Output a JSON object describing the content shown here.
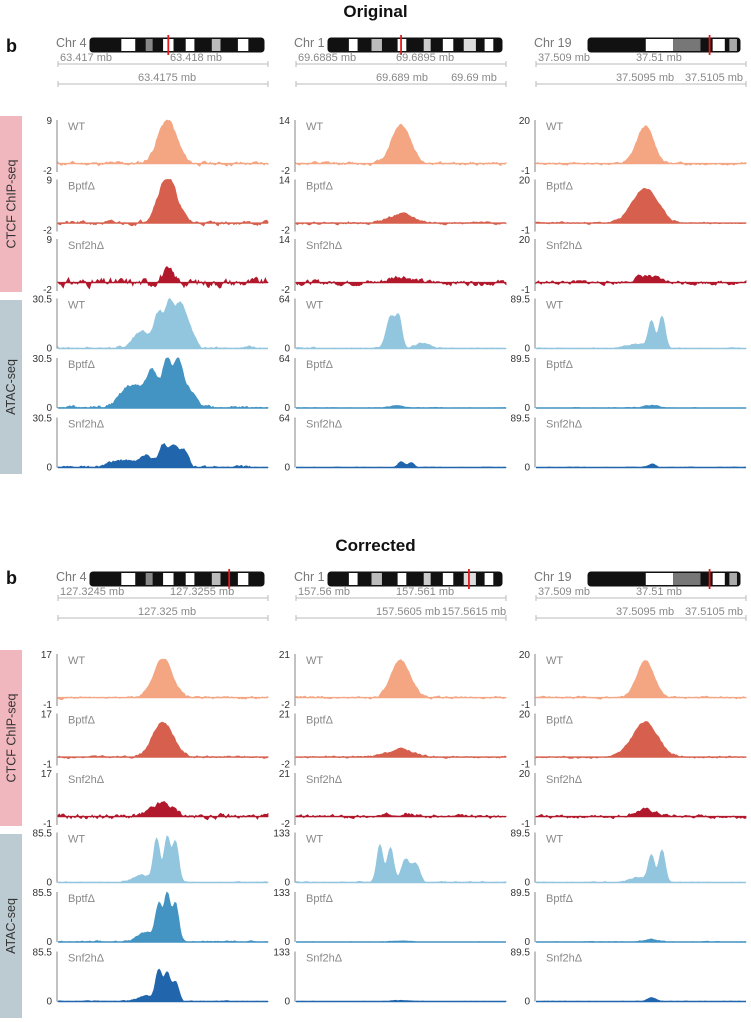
{
  "sections": [
    {
      "title": "Original",
      "panel_letter": "b",
      "side_labels": [
        "CTCF ChIP-seq",
        "ATAC-seq"
      ],
      "columns": [
        {
          "chromosome": "Chr 4",
          "coord_top": [
            "63.417 mb",
            "63.418 mb"
          ],
          "coord_bottom": "63.4175 mb",
          "ymax": {
            "chip": "9",
            "atac": "30.5"
          },
          "ymin": {
            "chip": "-2",
            "atac": "0"
          }
        },
        {
          "chromosome": "Chr 1",
          "coord_top": [
            "69.6885 mb",
            "69.6895 mb"
          ],
          "coord_bottom": "69.689 mb",
          "coord_bottom_right": "69.69 mb",
          "ymax": {
            "chip": "14",
            "atac": "64"
          },
          "ymin": {
            "chip": "-2",
            "atac": "0"
          }
        },
        {
          "chromosome": "Chr 19",
          "coord_top": [
            "37.509 mb",
            "37.51 mb"
          ],
          "coord_bottom": "37.5095 mb",
          "coord_bottom_right": "37.5105 mb",
          "ymax": {
            "chip": "20",
            "atac": "89.5"
          },
          "ymin": {
            "chip": "-1",
            "atac": "0"
          }
        }
      ]
    },
    {
      "title": "Corrected",
      "panel_letter": "b",
      "side_labels": [
        "CTCF ChIP-seq",
        "ATAC-seq"
      ],
      "columns": [
        {
          "chromosome": "Chr 4",
          "coord_top": [
            "127.3245 mb",
            "127.3255 mb"
          ],
          "coord_bottom": "127.325 mb",
          "ymax": {
            "chip": "17",
            "atac": "85.5"
          },
          "ymin": {
            "chip": "-1",
            "atac": "0"
          }
        },
        {
          "chromosome": "Chr 1",
          "coord_top": [
            "157.56 mb",
            "157.561 mb"
          ],
          "coord_bottom": "157.5605 mb",
          "coord_bottom_right": "157.5615 mb",
          "ymax": {
            "chip": "21",
            "atac": "133"
          },
          "ymin": {
            "chip": "-2",
            "atac": "0"
          }
        },
        {
          "chromosome": "Chr 19",
          "coord_top": [
            "37.509 mb",
            "37.51 mb"
          ],
          "coord_bottom": "37.5095 mb",
          "coord_bottom_right": "37.5105 mb",
          "ymax": {
            "chip": "20",
            "atac": "89.5"
          },
          "ymin": {
            "chip": "-1",
            "atac": "0"
          }
        }
      ]
    }
  ],
  "chart_data": {
    "type": "area",
    "track_labels": [
      "WT",
      "BptfΔ",
      "Snf2hΔ",
      "WT",
      "BptfΔ",
      "Snf2hΔ"
    ],
    "assays": [
      "CTCF ChIP-seq",
      "CTCF ChIP-seq",
      "CTCF ChIP-seq",
      "ATAC-seq",
      "ATAC-seq",
      "ATAC-seq"
    ],
    "series_colors": [
      "#f4a582",
      "#d6604d",
      "#b2182b",
      "#92c5de",
      "#4393c3",
      "#2166ac"
    ],
    "x": [
      0,
      0.1,
      0.2,
      0.3,
      0.4,
      0.5,
      0.6,
      0.7,
      0.8,
      0.9,
      1.0
    ],
    "panels": [
      {
        "section": "Original",
        "tracks": [
          [
            {
              "ymax": 9,
              "ymin": -2,
              "peaks": [
                [
                  0.52,
                  0.045,
                  1.0
                ]
              ],
              "noise": 0.1,
              "seed": 11
            },
            {
              "ymax": 14,
              "ymin": -2,
              "peaks": [
                [
                  0.5,
                  0.045,
                  0.9
                ]
              ],
              "noise": 0.08,
              "seed": 12
            },
            {
              "ymax": 20,
              "ymin": -1,
              "peaks": [
                [
                  0.52,
                  0.04,
                  0.85
                ]
              ],
              "noise": 0.06,
              "seed": 13
            }
          ],
          [
            {
              "ymax": 9,
              "ymin": -2,
              "peaks": [
                [
                  0.52,
                  0.045,
                  1.05
                ]
              ],
              "noise": 0.1,
              "seed": 21
            },
            {
              "ymax": 14,
              "ymin": -2,
              "peaks": [
                [
                  0.5,
                  0.06,
                  0.2
                ]
              ],
              "noise": 0.06,
              "seed": 22
            },
            {
              "ymax": 20,
              "ymin": -1,
              "peaks": [
                [
                  0.52,
                  0.06,
                  0.8
                ]
              ],
              "noise": 0.05,
              "seed": 23
            }
          ],
          [
            {
              "ymax": 9,
              "ymin": -2,
              "peaks": [
                [
                  0.52,
                  0.03,
                  0.25
                ]
              ],
              "noise": 0.2,
              "seed": 31
            },
            {
              "ymax": 14,
              "ymin": -2,
              "peaks": [
                [
                  0.5,
                  0.05,
                  0.15
                ]
              ],
              "noise": 0.12,
              "seed": 32
            },
            {
              "ymax": 20,
              "ymin": -1,
              "peaks": [
                [
                  0.52,
                  0.05,
                  0.15
                ]
              ],
              "noise": 0.1,
              "seed": 33
            }
          ],
          [
            {
              "ymax": 30.5,
              "ymin": 0,
              "peaks": [
                [
                  0.4,
                  0.04,
                  0.35
                ],
                [
                  0.48,
                  0.02,
                  0.65
                ],
                [
                  0.53,
                  0.02,
                  0.85
                ],
                [
                  0.58,
                  0.025,
                  0.75
                ],
                [
                  0.62,
                  0.03,
                  0.35
                ]
              ],
              "noise": 0.08,
              "seed": 41
            },
            {
              "ymax": 64,
              "ymin": 0,
              "peaks": [
                [
                  0.45,
                  0.02,
                  0.65
                ],
                [
                  0.49,
                  0.015,
                  0.6
                ],
                [
                  0.6,
                  0.03,
                  0.12
                ]
              ],
              "noise": 0.04,
              "seed": 42
            },
            {
              "ymax": 89.5,
              "ymin": 0,
              "peaks": [
                [
                  0.55,
                  0.015,
                  0.55
                ],
                [
                  0.6,
                  0.015,
                  0.65
                ],
                [
                  0.48,
                  0.04,
                  0.1
                ]
              ],
              "noise": 0.03,
              "seed": 43
            }
          ],
          [
            {
              "ymax": 30.5,
              "ymin": 0,
              "peaks": [
                [
                  0.35,
                  0.05,
                  0.45
                ],
                [
                  0.45,
                  0.03,
                  0.7
                ],
                [
                  0.52,
                  0.02,
                  0.95
                ],
                [
                  0.57,
                  0.02,
                  0.9
                ],
                [
                  0.62,
                  0.03,
                  0.4
                ]
              ],
              "noise": 0.08,
              "seed": 51
            },
            {
              "ymax": 64,
              "ymin": 0,
              "peaks": [
                [
                  0.48,
                  0.04,
                  0.04
                ]
              ],
              "noise": 0.02,
              "seed": 52
            },
            {
              "ymax": 89.5,
              "ymin": 0,
              "peaks": [
                [
                  0.55,
                  0.04,
                  0.05
                ]
              ],
              "noise": 0.02,
              "seed": 53
            }
          ],
          [
            {
              "ymax": 30.5,
              "ymin": 0,
              "peaks": [
                [
                  0.3,
                  0.05,
                  0.15
                ],
                [
                  0.42,
                  0.03,
                  0.25
                ],
                [
                  0.5,
                  0.02,
                  0.45
                ],
                [
                  0.55,
                  0.02,
                  0.45
                ],
                [
                  0.6,
                  0.02,
                  0.35
                ]
              ],
              "noise": 0.06,
              "seed": 61
            },
            {
              "ymax": 64,
              "ymin": 0,
              "peaks": [
                [
                  0.5,
                  0.015,
                  0.12
                ],
                [
                  0.55,
                  0.015,
                  0.1
                ]
              ],
              "noise": 0.02,
              "seed": 62
            },
            {
              "ymax": 89.5,
              "ymin": 0,
              "peaks": [
                [
                  0.55,
                  0.02,
                  0.07
                ]
              ],
              "noise": 0.02,
              "seed": 63
            }
          ]
        ]
      },
      {
        "section": "Corrected",
        "tracks": [
          [
            {
              "ymax": 17,
              "ymin": -1,
              "peaks": [
                [
                  0.5,
                  0.045,
                  0.9
                ]
              ],
              "noise": 0.06,
              "seed": 71
            },
            {
              "ymax": 21,
              "ymin": -2,
              "peaks": [
                [
                  0.5,
                  0.045,
                  0.85
                ]
              ],
              "noise": 0.06,
              "seed": 72
            },
            {
              "ymax": 20,
              "ymin": -1,
              "peaks": [
                [
                  0.52,
                  0.04,
                  0.85
                ]
              ],
              "noise": 0.05,
              "seed": 73
            }
          ],
          [
            {
              "ymax": 17,
              "ymin": -1,
              "peaks": [
                [
                  0.5,
                  0.05,
                  0.8
                ]
              ],
              "noise": 0.06,
              "seed": 81
            },
            {
              "ymax": 21,
              "ymin": -2,
              "peaks": [
                [
                  0.5,
                  0.06,
                  0.18
                ]
              ],
              "noise": 0.05,
              "seed": 82
            },
            {
              "ymax": 20,
              "ymin": -1,
              "peaks": [
                [
                  0.52,
                  0.06,
                  0.8
                ]
              ],
              "noise": 0.05,
              "seed": 83
            }
          ],
          [
            {
              "ymax": 17,
              "ymin": -1,
              "peaks": [
                [
                  0.5,
                  0.05,
                  0.3
                ]
              ],
              "noise": 0.12,
              "seed": 91
            },
            {
              "ymax": 21,
              "ymin": -2,
              "peaks": [
                [
                  0.5,
                  0.05,
                  0.08
                ]
              ],
              "noise": 0.08,
              "seed": 92
            },
            {
              "ymax": 20,
              "ymin": -1,
              "peaks": [
                [
                  0.52,
                  0.05,
                  0.15
                ]
              ],
              "noise": 0.08,
              "seed": 93
            }
          ],
          [
            {
              "ymax": 85.5,
              "ymin": 0,
              "peaks": [
                [
                  0.47,
                  0.015,
                  0.85
                ],
                [
                  0.52,
                  0.015,
                  0.9
                ],
                [
                  0.56,
                  0.015,
                  0.8
                ],
                [
                  0.4,
                  0.04,
                  0.15
                ]
              ],
              "noise": 0.04,
              "seed": 101
            },
            {
              "ymax": 133,
              "ymin": 0,
              "peaks": [
                [
                  0.4,
                  0.015,
                  0.75
                ],
                [
                  0.45,
                  0.015,
                  0.7
                ],
                [
                  0.52,
                  0.02,
                  0.45
                ],
                [
                  0.57,
                  0.02,
                  0.35
                ]
              ],
              "noise": 0.04,
              "seed": 102
            },
            {
              "ymax": 89.5,
              "ymin": 0,
              "peaks": [
                [
                  0.55,
                  0.015,
                  0.55
                ],
                [
                  0.6,
                  0.015,
                  0.65
                ],
                [
                  0.48,
                  0.04,
                  0.1
                ]
              ],
              "noise": 0.03,
              "seed": 103
            }
          ],
          [
            {
              "ymax": 85.5,
              "ymin": 0,
              "peaks": [
                [
                  0.48,
                  0.015,
                  0.7
                ],
                [
                  0.52,
                  0.015,
                  0.95
                ],
                [
                  0.56,
                  0.015,
                  0.75
                ],
                [
                  0.42,
                  0.04,
                  0.2
                ]
              ],
              "noise": 0.04,
              "seed": 111
            },
            {
              "ymax": 133,
              "ymin": 0,
              "peaks": [
                [
                  0.5,
                  0.05,
                  0.02
                ]
              ],
              "noise": 0.01,
              "seed": 112
            },
            {
              "ymax": 89.5,
              "ymin": 0,
              "peaks": [
                [
                  0.55,
                  0.04,
                  0.05
                ]
              ],
              "noise": 0.02,
              "seed": 113
            }
          ],
          [
            {
              "ymax": 85.5,
              "ymin": 0,
              "peaks": [
                [
                  0.48,
                  0.015,
                  0.6
                ],
                [
                  0.52,
                  0.015,
                  0.55
                ],
                [
                  0.56,
                  0.015,
                  0.4
                ],
                [
                  0.42,
                  0.04,
                  0.1
                ]
              ],
              "noise": 0.03,
              "seed": 121
            },
            {
              "ymax": 133,
              "ymin": 0,
              "peaks": [
                [
                  0.5,
                  0.05,
                  0.02
                ]
              ],
              "noise": 0.01,
              "seed": 122
            },
            {
              "ymax": 89.5,
              "ymin": 0,
              "peaks": [
                [
                  0.55,
                  0.02,
                  0.07
                ]
              ],
              "noise": 0.02,
              "seed": 123
            }
          ]
        ]
      }
    ]
  }
}
